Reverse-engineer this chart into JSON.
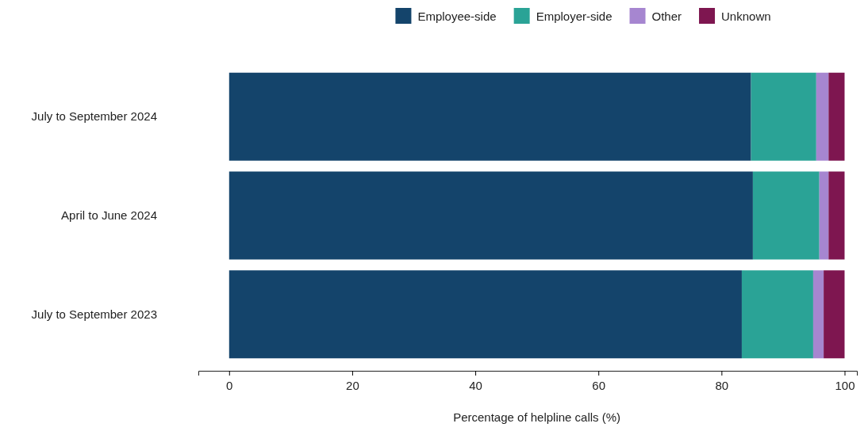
{
  "chart_data": {
    "type": "bar",
    "orientation": "horizontal",
    "stacked": true,
    "categories": [
      "July to September 2024",
      "April to June 2024",
      "July to September 2023"
    ],
    "series": [
      {
        "name": "Employee-side",
        "color": "#14446b",
        "values": [
          84.8,
          85.1,
          83.3
        ]
      },
      {
        "name": "Employer-side",
        "color": "#2aa396",
        "values": [
          10.6,
          10.8,
          11.6
        ]
      },
      {
        "name": "Other",
        "color": "#a686d0",
        "values": [
          2.0,
          1.5,
          1.7
        ]
      },
      {
        "name": "Unknown",
        "color": "#7e1650",
        "values": [
          2.6,
          2.6,
          3.4
        ]
      }
    ],
    "xlim": [
      -5,
      102
    ],
    "xticks": [
      0,
      20,
      40,
      60,
      80,
      100
    ],
    "xlabel": "Percentage of helpline calls (%)",
    "legend": "top",
    "grid": false
  }
}
